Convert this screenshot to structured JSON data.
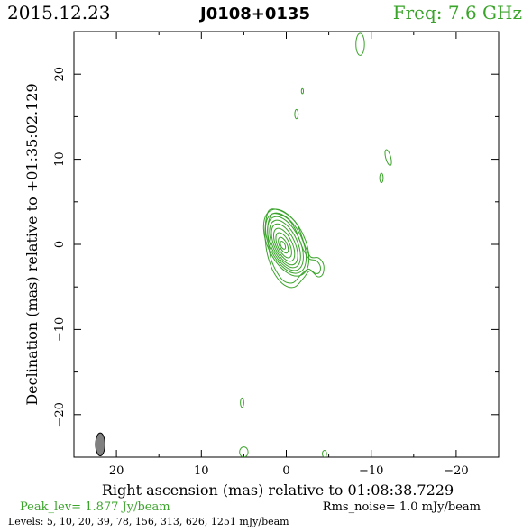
{
  "header": {
    "date": "2015.12.23",
    "source": "J0108+0135",
    "freq": "Freq: 7.6 GHz"
  },
  "colors": {
    "contour": "#3aa32a",
    "axis": "#000000",
    "beam_fill": "#808080",
    "freq_text": "#3aa32a"
  },
  "chart_data": {
    "type": "contour",
    "xlabel": "Right ascension (mas) relative to 01:08:38.7229",
    "ylabel": "Declination (mas) relative to +01:35:02.129",
    "xlim": [
      25,
      -25
    ],
    "ylim": [
      -25,
      25
    ],
    "x_ticks": [
      {
        "value": 20,
        "label": "20"
      },
      {
        "value": 10,
        "label": "10"
      },
      {
        "value": 0,
        "label": "0"
      },
      {
        "value": -10,
        "label": "−10"
      },
      {
        "value": -20,
        "label": "−20"
      }
    ],
    "y_ticks": [
      {
        "value": 20,
        "label": "20"
      },
      {
        "value": 10,
        "label": "10"
      },
      {
        "value": 0,
        "label": "0"
      },
      {
        "value": -10,
        "label": "−10"
      },
      {
        "value": -20,
        "label": "−20"
      }
    ],
    "core_contours": [
      {
        "cx": 0.0,
        "cy": 0.2,
        "rx": 2.2,
        "ry": 4.2,
        "angle": -25
      },
      {
        "cx": 0.05,
        "cy": 0.15,
        "rx": 1.95,
        "ry": 3.8,
        "angle": -25
      },
      {
        "cx": 0.1,
        "cy": 0.1,
        "rx": 1.7,
        "ry": 3.4,
        "angle": -25
      },
      {
        "cx": 0.15,
        "cy": 0.05,
        "rx": 1.45,
        "ry": 3.0,
        "angle": -25
      },
      {
        "cx": 0.2,
        "cy": 0.0,
        "rx": 1.2,
        "ry": 2.6,
        "angle": -25
      },
      {
        "cx": 0.25,
        "cy": -0.05,
        "rx": 0.95,
        "ry": 2.1,
        "angle": -25
      },
      {
        "cx": 0.3,
        "cy": -0.1,
        "rx": 0.7,
        "ry": 1.6,
        "angle": -25
      },
      {
        "cx": 0.35,
        "cy": -0.1,
        "rx": 0.45,
        "ry": 1.0,
        "angle": -25
      },
      {
        "cx": 0.4,
        "cy": -0.1,
        "rx": 0.25,
        "ry": 0.5,
        "angle": -25
      }
    ],
    "outer_contours": [
      [
        [
          1.9,
          4.1
        ],
        [
          0.8,
          4.0
        ],
        [
          -0.4,
          3.3
        ],
        [
          -1.3,
          2.3
        ],
        [
          -1.8,
          1.0
        ],
        [
          -2.3,
          -0.4
        ],
        [
          -2.9,
          -1.5
        ],
        [
          -3.8,
          -1.6
        ],
        [
          -4.4,
          -2.4
        ],
        [
          -4.3,
          -3.5
        ],
        [
          -3.7,
          -3.8
        ],
        [
          -2.8,
          -3.1
        ],
        [
          -2.0,
          -4.0
        ],
        [
          -1.0,
          -5.0
        ],
        [
          0.2,
          -4.8
        ],
        [
          1.3,
          -3.6
        ],
        [
          2.0,
          -2.0
        ],
        [
          2.4,
          -0.2
        ],
        [
          2.5,
          1.8
        ],
        [
          2.3,
          3.3
        ]
      ],
      [
        [
          1.6,
          3.6
        ],
        [
          0.7,
          3.5
        ],
        [
          -0.3,
          2.9
        ],
        [
          -1.0,
          1.9
        ],
        [
          -1.5,
          0.7
        ],
        [
          -2.0,
          -0.6
        ],
        [
          -2.7,
          -1.7
        ],
        [
          -3.5,
          -1.9
        ],
        [
          -4.0,
          -2.6
        ],
        [
          -3.9,
          -3.3
        ],
        [
          -3.4,
          -3.4
        ],
        [
          -2.6,
          -2.9
        ],
        [
          -1.7,
          -3.6
        ],
        [
          -0.8,
          -4.5
        ],
        [
          0.3,
          -4.3
        ],
        [
          1.2,
          -3.1
        ],
        [
          1.8,
          -1.7
        ],
        [
          2.1,
          0.0
        ],
        [
          2.2,
          1.8
        ],
        [
          2.0,
          3.0
        ]
      ]
    ],
    "isolated_contours": [
      {
        "cx": -8.7,
        "cy": 23.5,
        "rx": 0.5,
        "ry": 1.3,
        "angle": 0
      },
      {
        "cx": -1.9,
        "cy": 18.0,
        "rx": 0.12,
        "ry": 0.3,
        "angle": 0
      },
      {
        "cx": -1.2,
        "cy": 15.3,
        "rx": 0.2,
        "ry": 0.55,
        "angle": 0
      },
      {
        "cx": -12.0,
        "cy": 10.2,
        "rx": 0.3,
        "ry": 0.95,
        "angle": -15
      },
      {
        "cx": -11.2,
        "cy": 7.8,
        "rx": 0.2,
        "ry": 0.55,
        "angle": 0
      },
      {
        "cx": 5.2,
        "cy": -18.6,
        "rx": 0.2,
        "ry": 0.55,
        "angle": 0
      },
      {
        "cx": 5.0,
        "cy": -24.4,
        "rx": 0.5,
        "ry": 0.6,
        "angle": 0
      },
      {
        "cx": -4.5,
        "cy": -24.6,
        "rx": 0.25,
        "ry": 0.4,
        "angle": 0
      }
    ],
    "beam": {
      "cx": 21.9,
      "cy": -23.5,
      "rx": 0.55,
      "ry": 1.35,
      "angle": 0
    }
  },
  "footer": {
    "peak": "Peak_lev=  1.877 Jy/beam",
    "rms": "Rms_noise=  1.0 mJy/beam",
    "levels": "Levels:   5,  10,  20,  39,  78,  156,  313,  626,  1251 mJy/beam"
  }
}
